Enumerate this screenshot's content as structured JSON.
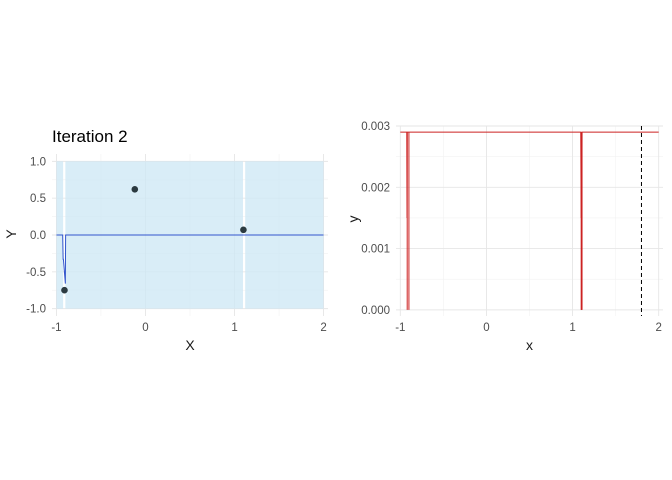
{
  "chart_data": [
    {
      "type": "line",
      "title": "Iteration 2",
      "xlabel": "X",
      "ylabel": "Y",
      "xlim": [
        -1.05,
        2.05
      ],
      "ylim": [
        -1.1,
        1.1
      ],
      "x_ticks": [
        -1,
        0,
        1,
        2
      ],
      "y_ticks": [
        -1.0,
        -0.5,
        0.0,
        0.5,
        1.0
      ],
      "x_tick_labels": [
        "-1",
        "0",
        "1",
        "2"
      ],
      "y_tick_labels": [
        "-1.0",
        "-0.5",
        "0.0",
        "0.5",
        "1.0"
      ],
      "grid": true,
      "colors": {
        "band": "#cce7f4",
        "line": "#3355cc",
        "points": "#2b3a40"
      },
      "band": {
        "y_range": [
          -1.0,
          1.0
        ],
        "segments": [
          [
            -1.0,
            -0.925
          ],
          [
            -0.9,
            1.095
          ],
          [
            1.12,
            2.0
          ]
        ]
      },
      "series": [
        {
          "x": [
            -1.0,
            -0.93,
            -0.925,
            -0.922,
            -0.9,
            -0.897,
            -0.895,
            2.0
          ],
          "y": [
            0.0,
            0.0,
            -0.33,
            -0.33,
            -0.66,
            0.0,
            0.0,
            0.0
          ]
        }
      ],
      "points": {
        "x": [
          -0.91,
          -0.12,
          1.1
        ],
        "y": [
          -0.75,
          0.62,
          0.07
        ]
      }
    },
    {
      "type": "line",
      "title": "",
      "xlabel": "x",
      "ylabel": "y",
      "xlim": [
        -1.05,
        2.05
      ],
      "ylim": [
        -0.0001,
        0.003
      ],
      "x_ticks": [
        -1,
        0,
        1,
        2
      ],
      "y_ticks": [
        0.0,
        0.001,
        0.002,
        0.003
      ],
      "x_tick_labels": [
        "-1",
        "0",
        "1",
        "2"
      ],
      "y_tick_labels": [
        "0.000",
        "0.001",
        "0.002",
        "0.003"
      ],
      "grid": true,
      "colors": {
        "line": "#cc2222",
        "vline": "#000000"
      },
      "series": [
        {
          "x": [
            -1.0,
            -0.93,
            -0.925,
            -0.922,
            -0.92,
            -0.9,
            -0.895,
            1.09,
            1.095,
            1.1,
            1.102,
            1.105,
            1.11,
            2.0
          ],
          "y": [
            0.0029,
            0.0029,
            0.0029,
            0.0015,
            0.0029,
            0.0029,
            0.0029,
            0.0029,
            0.0029,
            0.0015,
            0.0029,
            0.0,
            0.0029,
            0.0029
          ]
        }
      ],
      "drops": [
        {
          "x_left": -0.92,
          "x_right": -0.9,
          "y_min": 0.0
        },
        {
          "x_left": 1.1,
          "x_right": 1.11,
          "y_min": 0.0
        }
      ],
      "vline": {
        "x": 1.8,
        "style": "dashed"
      }
    }
  ]
}
